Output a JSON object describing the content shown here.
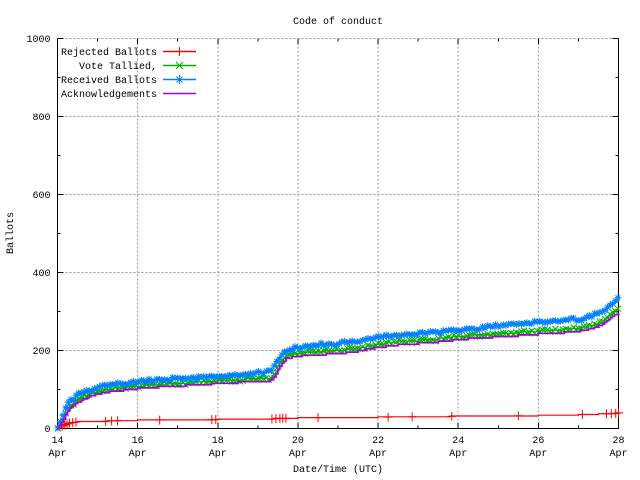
{
  "chart_data": {
    "type": "line",
    "title": "Code of conduct",
    "xlabel": "Date/Time (UTC)",
    "ylabel": "Ballots",
    "month_label": "Apr",
    "xlim": [
      14,
      28
    ],
    "ylim": [
      0,
      1000
    ],
    "x_major_ticks": [
      14,
      16,
      18,
      20,
      22,
      24,
      26,
      28
    ],
    "x_minor_ticks": [
      15,
      17,
      19,
      21,
      23,
      25,
      27
    ],
    "y_major_ticks": [
      0,
      200,
      400,
      600,
      800,
      1000
    ],
    "y_minor_ticks": [
      100,
      300,
      500,
      700,
      900
    ],
    "grid": "dashed-gray-at-major-ticks",
    "grid_color": "#999999",
    "legend_position": "top-left-inside",
    "series": [
      {
        "name": "Rejected Ballots",
        "color": "#ff0000",
        "marker": "plus",
        "points": [
          [
            14.0,
            0
          ],
          [
            14.15,
            8
          ],
          [
            14.3,
            14
          ],
          [
            14.5,
            17
          ],
          [
            15.0,
            18
          ],
          [
            15.5,
            20
          ],
          [
            16.0,
            21
          ],
          [
            17.0,
            22
          ],
          [
            18.0,
            23
          ],
          [
            19.3,
            24
          ],
          [
            19.5,
            26
          ],
          [
            20.0,
            27
          ],
          [
            20.5,
            28
          ],
          [
            21.0,
            28
          ],
          [
            22.0,
            29
          ],
          [
            22.8,
            30
          ],
          [
            23.8,
            31
          ],
          [
            25.0,
            32
          ],
          [
            26.0,
            33
          ],
          [
            27.0,
            35
          ],
          [
            27.1,
            36
          ],
          [
            27.5,
            37
          ],
          [
            27.9,
            38
          ],
          [
            28.0,
            40
          ]
        ],
        "marker_days": [
          14.12,
          14.18,
          14.24,
          14.3,
          14.38,
          14.46,
          15.2,
          15.35,
          15.5,
          16.55,
          17.85,
          17.95,
          19.35,
          19.45,
          19.55,
          19.62,
          19.7,
          20.5,
          22.25,
          22.85,
          23.84,
          25.5,
          27.1,
          27.7,
          27.82,
          27.93,
          28.0
        ]
      },
      {
        "name": "Vote Tallied,",
        "color": "#00b000",
        "marker": "cross",
        "points": [
          [
            14.0,
            0
          ],
          [
            14.1,
            18
          ],
          [
            14.2,
            40
          ],
          [
            14.3,
            57
          ],
          [
            14.45,
            70
          ],
          [
            14.6,
            80
          ],
          [
            14.8,
            89
          ],
          [
            15.0,
            95
          ],
          [
            15.3,
            101
          ],
          [
            15.7,
            106
          ],
          [
            16.0,
            109
          ],
          [
            16.5,
            113
          ],
          [
            17.0,
            116
          ],
          [
            17.5,
            119
          ],
          [
            18.0,
            122
          ],
          [
            18.5,
            125
          ],
          [
            19.0,
            128
          ],
          [
            19.3,
            129
          ],
          [
            19.4,
            140
          ],
          [
            19.5,
            158
          ],
          [
            19.6,
            175
          ],
          [
            19.7,
            186
          ],
          [
            19.85,
            191
          ],
          [
            20.1,
            194
          ],
          [
            20.5,
            197
          ],
          [
            21.0,
            200
          ],
          [
            21.5,
            206
          ],
          [
            22.0,
            216
          ],
          [
            22.5,
            222
          ],
          [
            23.0,
            226
          ],
          [
            23.5,
            230
          ],
          [
            24.0,
            236
          ],
          [
            24.5,
            240
          ],
          [
            25.0,
            243
          ],
          [
            25.5,
            246
          ],
          [
            26.0,
            250
          ],
          [
            26.5,
            253
          ],
          [
            27.0,
            257
          ],
          [
            27.2,
            261
          ],
          [
            27.4,
            266
          ],
          [
            27.55,
            273
          ],
          [
            27.7,
            283
          ],
          [
            27.85,
            295
          ],
          [
            28.0,
            306
          ]
        ]
      },
      {
        "name": "Received Ballots",
        "color": "#0080ff",
        "marker": "star",
        "points": [
          [
            14.0,
            0
          ],
          [
            14.05,
            10
          ],
          [
            14.1,
            25
          ],
          [
            14.2,
            50
          ],
          [
            14.3,
            68
          ],
          [
            14.45,
            82
          ],
          [
            14.6,
            92
          ],
          [
            14.8,
            100
          ],
          [
            15.0,
            106
          ],
          [
            15.3,
            112
          ],
          [
            15.7,
            117
          ],
          [
            16.0,
            120
          ],
          [
            16.5,
            124
          ],
          [
            17.0,
            127
          ],
          [
            17.5,
            130
          ],
          [
            18.0,
            133
          ],
          [
            18.5,
            136
          ],
          [
            19.0,
            143
          ],
          [
            19.3,
            147
          ],
          [
            19.4,
            158
          ],
          [
            19.5,
            175
          ],
          [
            19.6,
            190
          ],
          [
            19.7,
            200
          ],
          [
            19.85,
            205
          ],
          [
            20.1,
            209
          ],
          [
            20.5,
            214
          ],
          [
            21.0,
            218
          ],
          [
            21.5,
            224
          ],
          [
            22.0,
            234
          ],
          [
            22.5,
            240
          ],
          [
            23.0,
            244
          ],
          [
            23.5,
            248
          ],
          [
            24.0,
            252
          ],
          [
            24.5,
            257
          ],
          [
            25.0,
            264
          ],
          [
            25.5,
            268
          ],
          [
            26.0,
            273
          ],
          [
            26.5,
            276
          ],
          [
            27.0,
            280
          ],
          [
            27.2,
            284
          ],
          [
            27.4,
            290
          ],
          [
            27.55,
            298
          ],
          [
            27.7,
            308
          ],
          [
            27.85,
            320
          ],
          [
            28.0,
            332
          ]
        ]
      },
      {
        "name": "Acknowledgements",
        "color": "#a800d8",
        "marker": "none",
        "points": [
          [
            14.0,
            0
          ],
          [
            14.05,
            8
          ],
          [
            14.1,
            14
          ],
          [
            14.2,
            34
          ],
          [
            14.3,
            50
          ],
          [
            14.45,
            63
          ],
          [
            14.6,
            73
          ],
          [
            14.8,
            82
          ],
          [
            15.0,
            88
          ],
          [
            15.3,
            94
          ],
          [
            15.7,
            99
          ],
          [
            16.0,
            102
          ],
          [
            16.5,
            106
          ],
          [
            17.0,
            109
          ],
          [
            17.5,
            112
          ],
          [
            18.0,
            115
          ],
          [
            18.5,
            118
          ],
          [
            19.0,
            121
          ],
          [
            19.3,
            122
          ],
          [
            19.4,
            133
          ],
          [
            19.5,
            150
          ],
          [
            19.6,
            167
          ],
          [
            19.7,
            178
          ],
          [
            19.85,
            183
          ],
          [
            20.1,
            186
          ],
          [
            20.5,
            189
          ],
          [
            21.0,
            192
          ],
          [
            21.5,
            198
          ],
          [
            22.0,
            208
          ],
          [
            22.5,
            214
          ],
          [
            23.0,
            218
          ],
          [
            23.5,
            222
          ],
          [
            24.0,
            228
          ],
          [
            24.5,
            232
          ],
          [
            25.0,
            235
          ],
          [
            25.5,
            238
          ],
          [
            26.0,
            242
          ],
          [
            26.5,
            245
          ],
          [
            27.0,
            249
          ],
          [
            27.2,
            253
          ],
          [
            27.4,
            258
          ],
          [
            27.55,
            265
          ],
          [
            27.7,
            275
          ],
          [
            27.85,
            287
          ],
          [
            28.0,
            297
          ]
        ]
      }
    ]
  }
}
